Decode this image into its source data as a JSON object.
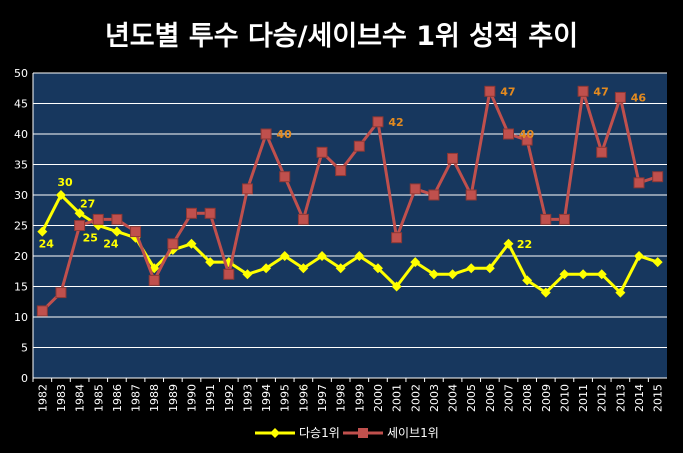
{
  "chart_data": {
    "type": "line",
    "title": "년도별 투수 다승/세이브수 1위 성적 추이",
    "x": [
      "1982",
      "1983",
      "1984",
      "1985",
      "1986",
      "1987",
      "1988",
      "1989",
      "1990",
      "1991",
      "1992",
      "1993",
      "1994",
      "1995",
      "1996",
      "1997",
      "1998",
      "1999",
      "2000",
      "2001",
      "2002",
      "2003",
      "2004",
      "2005",
      "2006",
      "2007",
      "2008",
      "2009",
      "2010",
      "2011",
      "2012",
      "2013",
      "2014",
      "2015"
    ],
    "ylim": [
      0,
      50
    ],
    "yticks": [
      "0",
      "5",
      "10",
      "15",
      "20",
      "25",
      "30",
      "35",
      "40",
      "45",
      "50"
    ],
    "grid": true,
    "legend_position": "bottom",
    "series": [
      {
        "name": "다승1위",
        "color": "#ffff00",
        "marker": "diamond",
        "values": [
          24,
          30,
          27,
          25,
          24,
          23,
          18,
          21,
          22,
          19,
          19,
          17,
          18,
          20,
          18,
          20,
          18,
          20,
          18,
          15,
          19,
          17,
          17,
          18,
          18,
          22,
          16,
          14,
          17,
          17,
          17,
          14,
          20,
          19
        ],
        "labels": [
          {
            "index": 0,
            "text": "24"
          },
          {
            "index": 1,
            "text": "30"
          },
          {
            "index": 2,
            "text": "27"
          },
          {
            "index": 3,
            "text": "25"
          },
          {
            "index": 4,
            "text": "24"
          },
          {
            "index": 25,
            "text": "22"
          }
        ]
      },
      {
        "name": "세이브1위",
        "color": "#c0504d",
        "marker": "square",
        "values": [
          11,
          14,
          25,
          26,
          26,
          24,
          16,
          22,
          27,
          27,
          17,
          31,
          40,
          33,
          26,
          37,
          34,
          38,
          42,
          23,
          31,
          30,
          36,
          30,
          47,
          40,
          39,
          26,
          26,
          47,
          37,
          46,
          32,
          33
        ],
        "labels": [
          {
            "index": 12,
            "text": "40"
          },
          {
            "index": 18,
            "text": "42"
          },
          {
            "index": 24,
            "text": "47"
          },
          {
            "index": 25,
            "text": "40"
          },
          {
            "index": 29,
            "text": "47"
          },
          {
            "index": 31,
            "text": "46"
          }
        ]
      }
    ],
    "colors": {
      "plot_background": "#17375e",
      "grid": "#ffffff",
      "text": "#ffffff",
      "label_orange": "#e38a1f",
      "label_yellow": "#ffff00"
    }
  }
}
